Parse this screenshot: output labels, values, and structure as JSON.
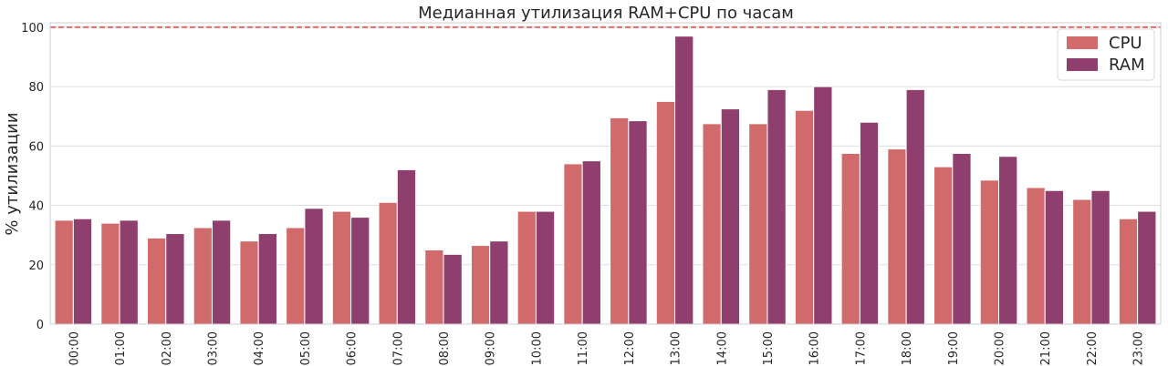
{
  "chart_data": {
    "type": "bar",
    "title": "Медианная утилизация RAM+CPU по часам",
    "xlabel": "",
    "ylabel": "% утилизации",
    "ylim": [
      0,
      101.5
    ],
    "yticks": [
      0,
      20,
      40,
      60,
      80,
      100
    ],
    "grid": true,
    "legend_position": "top-right",
    "reference_line": {
      "y": 100,
      "style": "dashed",
      "color": "#e8413a"
    },
    "categories": [
      "00:00",
      "01:00",
      "02:00",
      "03:00",
      "04:00",
      "05:00",
      "06:00",
      "07:00",
      "08:00",
      "09:00",
      "10:00",
      "11:00",
      "12:00",
      "13:00",
      "14:00",
      "15:00",
      "16:00",
      "17:00",
      "18:00",
      "19:00",
      "20:00",
      "21:00",
      "22:00",
      "23:00"
    ],
    "series": [
      {
        "name": "CPU",
        "color": "#d16a6a",
        "values": [
          35.0,
          34.0,
          29.0,
          32.5,
          28.0,
          32.5,
          38.0,
          41.0,
          25.0,
          26.5,
          38.0,
          54.0,
          69.5,
          75.0,
          67.5,
          67.5,
          72.0,
          57.5,
          59.0,
          53.0,
          48.5,
          46.0,
          42.0,
          35.5
        ]
      },
      {
        "name": "RAM",
        "color": "#8e3f6d",
        "values": [
          35.5,
          35.0,
          30.5,
          35.0,
          30.5,
          39.0,
          36.0,
          52.0,
          23.5,
          28.0,
          38.0,
          55.0,
          68.5,
          97.0,
          72.5,
          79.0,
          80.0,
          68.0,
          79.0,
          57.5,
          56.5,
          45.0,
          45.0,
          38.0
        ]
      }
    ]
  }
}
